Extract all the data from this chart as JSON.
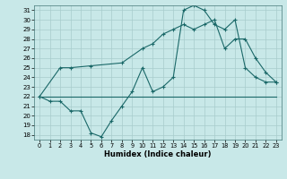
{
  "xlabel": "Humidex (Indice chaleur)",
  "bg_color": "#c8e8e8",
  "line_color": "#1a6868",
  "grid_color": "#a8cccc",
  "xlim": [
    -0.5,
    23.5
  ],
  "ylim": [
    17.5,
    31.5
  ],
  "yticks": [
    18,
    19,
    20,
    21,
    22,
    23,
    24,
    25,
    26,
    27,
    28,
    29,
    30,
    31
  ],
  "xticks": [
    0,
    1,
    2,
    3,
    4,
    5,
    6,
    7,
    8,
    9,
    10,
    11,
    12,
    13,
    14,
    15,
    16,
    17,
    18,
    19,
    20,
    21,
    22,
    23
  ],
  "line1_x": [
    0,
    1,
    2,
    3,
    4,
    5,
    6,
    7,
    8,
    9,
    10,
    11,
    12,
    13,
    14,
    15,
    16,
    17,
    18,
    19,
    20,
    21,
    22,
    23
  ],
  "line1_y": [
    22,
    21.5,
    21.5,
    20.5,
    20.5,
    18.2,
    17.8,
    19.5,
    21,
    22.5,
    25,
    22.5,
    23,
    24,
    31,
    31.5,
    31,
    29.5,
    29,
    30,
    25,
    24,
    23.5,
    23.5
  ],
  "line2_x": [
    0,
    1,
    2,
    3,
    4,
    5,
    6,
    7,
    8,
    9,
    10,
    11,
    12,
    13,
    14,
    15,
    16,
    17,
    18,
    19,
    20,
    21,
    22,
    23
  ],
  "line2_y": [
    22,
    22,
    22,
    22,
    22,
    22,
    22,
    22,
    22,
    22,
    22,
    22,
    22,
    22,
    22,
    22,
    22,
    22,
    22,
    22,
    22,
    22,
    22,
    22
  ],
  "line3_x": [
    0,
    2,
    3,
    5,
    8,
    10,
    11,
    12,
    13,
    14,
    15,
    16,
    17,
    18,
    19,
    20,
    21,
    22,
    23
  ],
  "line3_y": [
    22,
    25,
    25,
    25.2,
    25.5,
    27,
    27.5,
    28.5,
    29,
    29.5,
    29,
    29.5,
    30,
    27,
    28,
    28,
    26,
    24.5,
    23.5
  ]
}
